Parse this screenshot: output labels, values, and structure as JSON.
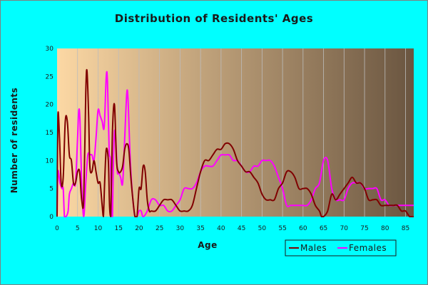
{
  "colors": {
    "background": "#00ffff",
    "plot_gradient_start": "#fcd8a4",
    "plot_gradient_end": "#6a5540",
    "males": "#800000",
    "females": "#ff00ff"
  },
  "chart_data": {
    "type": "line",
    "title": "Distribution of Residents' Ages",
    "xlabel": "Age",
    "ylabel": "Number of residents",
    "xlim": [
      0,
      87
    ],
    "ylim": [
      0,
      30
    ],
    "xticks": [
      0,
      5,
      10,
      15,
      20,
      25,
      30,
      35,
      40,
      45,
      50,
      55,
      60,
      65,
      70,
      75,
      80,
      85
    ],
    "yticks": [
      0,
      5,
      10,
      15,
      20,
      25,
      30
    ],
    "grid": "vertical",
    "legend_position": "bottom-right",
    "series": [
      {
        "name": "Males",
        "color": "#800000",
        "points": [
          [
            0,
            0
          ],
          [
            0.2,
            18
          ],
          [
            0.6,
            14
          ],
          [
            1,
            6
          ],
          [
            1.5,
            7
          ],
          [
            2,
            17
          ],
          [
            2.5,
            17
          ],
          [
            3,
            11
          ],
          [
            3.5,
            10
          ],
          [
            4,
            6
          ],
          [
            4.5,
            6
          ],
          [
            5,
            8
          ],
          [
            5.5,
            8
          ],
          [
            6,
            3
          ],
          [
            6.5,
            3
          ],
          [
            7,
            22
          ],
          [
            7.3,
            26
          ],
          [
            7.7,
            18
          ],
          [
            8,
            9
          ],
          [
            8.5,
            8
          ],
          [
            9,
            10
          ],
          [
            9.5,
            8
          ],
          [
            10,
            6
          ],
          [
            10.5,
            6
          ],
          [
            11,
            2
          ],
          [
            11.3,
            0
          ],
          [
            11.6,
            6
          ],
          [
            12,
            12
          ],
          [
            12.5,
            10
          ],
          [
            12.8,
            2
          ],
          [
            13.1,
            0
          ],
          [
            13.5,
            15
          ],
          [
            14,
            20
          ],
          [
            14.5,
            10
          ],
          [
            15,
            8
          ],
          [
            15.5,
            8
          ],
          [
            16,
            9
          ],
          [
            16.5,
            12
          ],
          [
            17,
            13
          ],
          [
            17.5,
            12
          ],
          [
            18,
            7
          ],
          [
            18.5,
            3
          ],
          [
            19,
            0
          ],
          [
            19.5,
            0
          ],
          [
            20,
            5
          ],
          [
            20.5,
            5
          ],
          [
            21,
            9
          ],
          [
            21.5,
            8
          ],
          [
            22,
            3
          ],
          [
            22.5,
            1
          ],
          [
            23,
            1
          ],
          [
            24,
            1
          ],
          [
            25,
            2
          ],
          [
            26,
            3
          ],
          [
            27,
            3
          ],
          [
            28,
            3
          ],
          [
            29,
            2
          ],
          [
            30,
            1
          ],
          [
            31,
            1
          ],
          [
            32,
            1
          ],
          [
            33,
            2
          ],
          [
            34,
            5
          ],
          [
            35,
            8
          ],
          [
            36,
            10
          ],
          [
            37,
            10
          ],
          [
            38,
            11
          ],
          [
            39,
            12
          ],
          [
            40,
            12
          ],
          [
            41,
            13
          ],
          [
            42,
            13
          ],
          [
            43,
            12
          ],
          [
            44,
            10
          ],
          [
            45,
            9
          ],
          [
            46,
            8
          ],
          [
            47,
            8
          ],
          [
            48,
            7
          ],
          [
            49,
            6
          ],
          [
            50,
            4
          ],
          [
            51,
            3
          ],
          [
            52,
            3
          ],
          [
            53,
            3
          ],
          [
            54,
            5
          ],
          [
            55,
            6
          ],
          [
            56,
            8
          ],
          [
            57,
            8
          ],
          [
            58,
            7
          ],
          [
            59,
            5
          ],
          [
            60,
            5
          ],
          [
            61,
            5
          ],
          [
            62,
            4
          ],
          [
            63,
            2
          ],
          [
            64,
            1
          ],
          [
            64.5,
            0
          ],
          [
            65,
            0
          ],
          [
            66,
            1
          ],
          [
            67,
            4
          ],
          [
            68,
            3
          ],
          [
            69,
            4
          ],
          [
            70,
            5
          ],
          [
            71,
            6
          ],
          [
            72,
            7
          ],
          [
            73,
            6
          ],
          [
            74,
            6
          ],
          [
            75,
            5
          ],
          [
            76,
            3
          ],
          [
            77,
            3
          ],
          [
            78,
            3
          ],
          [
            79,
            2
          ],
          [
            80,
            2
          ],
          [
            81,
            2
          ],
          [
            82,
            2
          ],
          [
            83,
            2
          ],
          [
            84,
            1
          ],
          [
            85,
            1
          ],
          [
            86,
            0
          ],
          [
            87,
            0
          ]
        ]
      },
      {
        "name": "Females",
        "color": "#ff00ff",
        "points": [
          [
            0,
            0
          ],
          [
            0.2,
            8
          ],
          [
            0.7,
            6
          ],
          [
            1.2,
            5
          ],
          [
            1.5,
            5
          ],
          [
            1.8,
            0
          ],
          [
            2.2,
            0
          ],
          [
            2.7,
            1
          ],
          [
            3,
            4
          ],
          [
            3.5,
            5
          ],
          [
            4,
            6
          ],
          [
            4.5,
            6
          ],
          [
            5,
            14
          ],
          [
            5.3,
            19
          ],
          [
            5.6,
            17
          ],
          [
            6,
            6
          ],
          [
            6.5,
            0
          ],
          [
            7,
            6
          ],
          [
            7.5,
            11
          ],
          [
            8,
            11
          ],
          [
            8.5,
            11
          ],
          [
            9,
            10
          ],
          [
            9.5,
            14
          ],
          [
            10,
            19
          ],
          [
            10.5,
            18
          ],
          [
            11,
            17
          ],
          [
            11.5,
            16
          ],
          [
            12,
            25
          ],
          [
            12.3,
            24
          ],
          [
            12.7,
            12
          ],
          [
            13,
            10
          ],
          [
            13.3,
            2
          ],
          [
            13.5,
            0
          ],
          [
            13.7,
            8
          ],
          [
            14,
            15
          ],
          [
            14.3,
            14
          ],
          [
            14.7,
            8
          ],
          [
            15,
            8
          ],
          [
            15.5,
            7
          ],
          [
            16,
            6
          ],
          [
            16.5,
            14
          ],
          [
            17,
            22
          ],
          [
            17.3,
            21
          ],
          [
            17.7,
            13
          ],
          [
            18,
            8
          ],
          [
            18.5,
            3
          ],
          [
            19,
            0
          ],
          [
            19.5,
            0
          ],
          [
            20,
            1
          ],
          [
            20.5,
            1
          ],
          [
            21,
            0
          ],
          [
            22,
            1
          ],
          [
            23,
            3
          ],
          [
            24,
            3
          ],
          [
            25,
            2
          ],
          [
            26,
            2
          ],
          [
            27,
            1
          ],
          [
            28,
            1
          ],
          [
            29,
            2
          ],
          [
            30,
            3
          ],
          [
            31,
            5
          ],
          [
            32,
            5
          ],
          [
            33,
            5
          ],
          [
            34,
            6
          ],
          [
            35,
            8
          ],
          [
            36,
            9
          ],
          [
            37,
            9
          ],
          [
            38,
            9
          ],
          [
            39,
            10
          ],
          [
            40,
            11
          ],
          [
            41,
            11
          ],
          [
            42,
            11
          ],
          [
            43,
            10
          ],
          [
            44,
            10
          ],
          [
            45,
            9
          ],
          [
            46,
            8
          ],
          [
            47,
            8
          ],
          [
            48,
            9
          ],
          [
            49,
            9
          ],
          [
            50,
            10
          ],
          [
            51,
            10
          ],
          [
            52,
            10
          ],
          [
            53,
            9
          ],
          [
            54,
            7
          ],
          [
            55,
            5
          ],
          [
            56,
            2
          ],
          [
            57,
            2
          ],
          [
            58,
            2
          ],
          [
            59,
            2
          ],
          [
            60,
            2
          ],
          [
            61,
            2
          ],
          [
            62,
            3
          ],
          [
            63,
            5
          ],
          [
            64,
            6
          ],
          [
            65,
            10
          ],
          [
            66,
            10
          ],
          [
            67,
            5
          ],
          [
            68,
            3
          ],
          [
            69,
            3
          ],
          [
            70,
            3
          ],
          [
            71,
            5
          ],
          [
            72,
            6
          ],
          [
            73,
            6
          ],
          [
            74,
            6
          ],
          [
            75,
            5
          ],
          [
            76,
            5
          ],
          [
            77,
            5
          ],
          [
            78,
            5
          ],
          [
            79,
            3
          ],
          [
            80,
            3
          ],
          [
            81,
            2
          ],
          [
            82,
            2
          ],
          [
            83,
            2
          ],
          [
            84,
            2
          ],
          [
            85,
            2
          ],
          [
            86,
            2
          ],
          [
            87,
            2
          ]
        ]
      }
    ]
  }
}
